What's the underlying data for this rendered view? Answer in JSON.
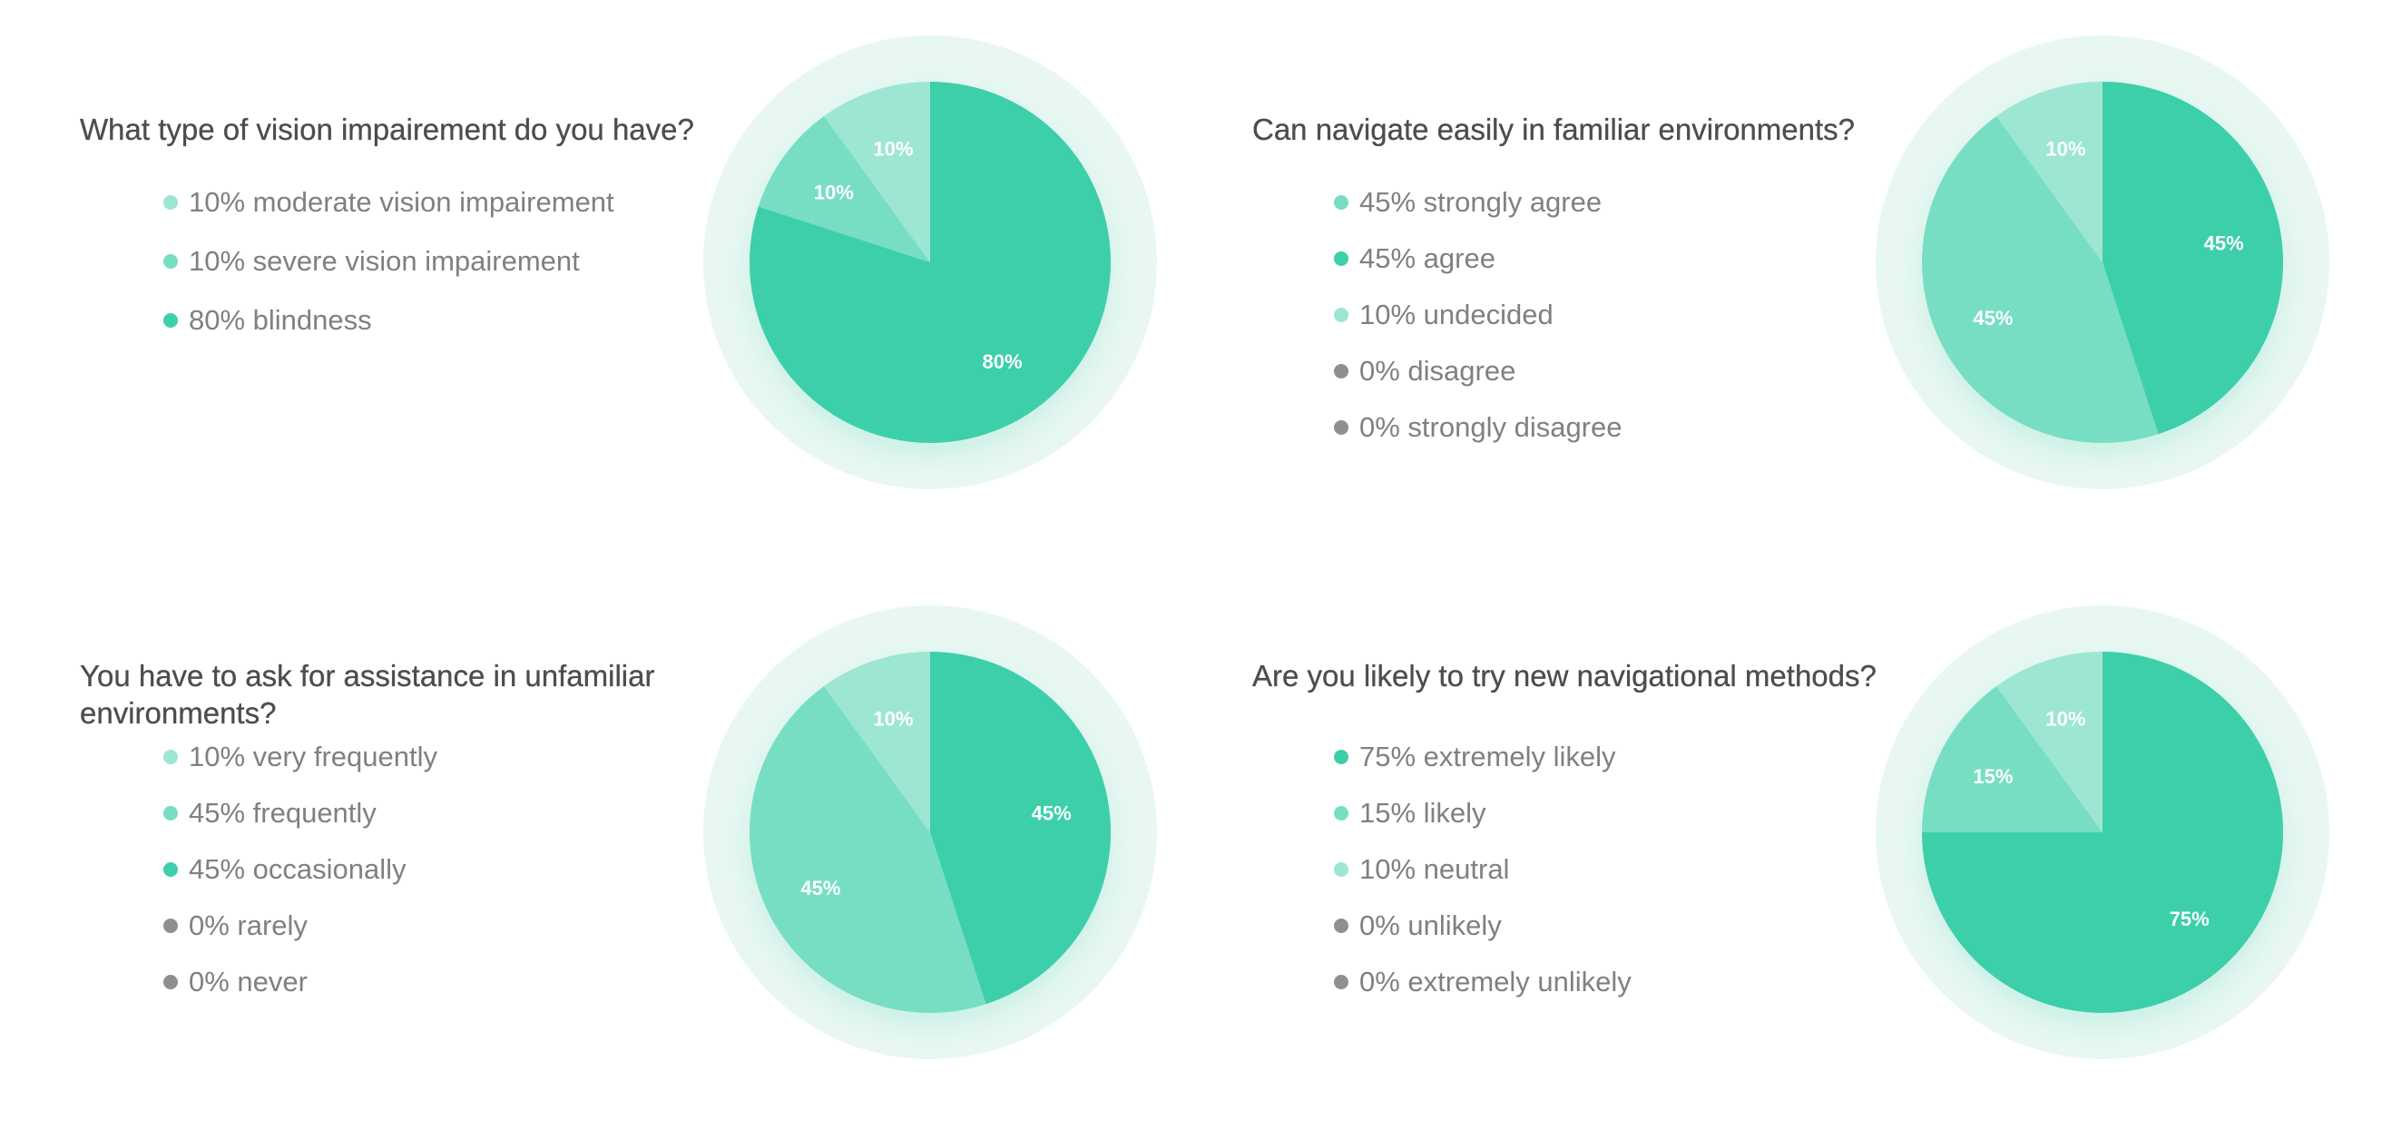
{
  "colors": {
    "dark_green": "#3ccfaa",
    "mid_green": "#77dec4",
    "light_green": "#9de6d3",
    "gray": "#8f8f8f",
    "halo": "#e8f7f2"
  },
  "panels": [
    {
      "question": "What type of vision impairement do you have?",
      "legend": [
        {
          "text": "10% moderate vision impairement",
          "color": "#9de6d3"
        },
        {
          "text": "10% severe vision impairement",
          "color": "#77dec4"
        },
        {
          "text": "80% blindness",
          "color": "#3ccfaa"
        }
      ]
    },
    {
      "question": "Can navigate easily in familiar environments?",
      "legend": [
        {
          "text": "45% strongly agree",
          "color": "#77dec4"
        },
        {
          "text": "45% agree",
          "color": "#3ccfaa"
        },
        {
          "text": "10% undecided",
          "color": "#9de6d3"
        },
        {
          "text": "0% disagree",
          "color": "#8f8f8f"
        },
        {
          "text": "0% strongly disagree",
          "color": "#8f8f8f"
        }
      ]
    },
    {
      "question": "You have to ask for assistance in unfamiliar environments?",
      "legend": [
        {
          "text": "10% very frequently",
          "color": "#9de6d3"
        },
        {
          "text": "45% frequently",
          "color": "#77dec4"
        },
        {
          "text": "45% occasionally",
          "color": "#3ccfaa"
        },
        {
          "text": "0% rarely",
          "color": "#8f8f8f"
        },
        {
          "text": "0% never",
          "color": "#8f8f8f"
        }
      ]
    },
    {
      "question": "Are you likely to try new navigational methods?",
      "legend": [
        {
          "text": "75% extremely likely",
          "color": "#3ccfaa"
        },
        {
          "text": "15% likely",
          "color": "#77dec4"
        },
        {
          "text": "10% neutral",
          "color": "#9de6d3"
        },
        {
          "text": "0% unlikely",
          "color": "#8f8f8f"
        },
        {
          "text": "0% extremely unlikely",
          "color": "#8f8f8f"
        }
      ]
    }
  ],
  "chart_data": [
    {
      "type": "pie",
      "title": "What type of vision impairement do you have?",
      "slices": [
        {
          "name": "blindness",
          "value": 80,
          "label": "80%",
          "color": "#3ccfaa"
        },
        {
          "name": "severe vision impairement",
          "value": 10,
          "label": "10%",
          "color": "#77dec4"
        },
        {
          "name": "moderate vision impairement",
          "value": 10,
          "label": "10%",
          "color": "#9de6d3"
        }
      ]
    },
    {
      "type": "pie",
      "title": "Can navigate easily in familiar environments?",
      "slices": [
        {
          "name": "agree",
          "value": 45,
          "label": "45%",
          "color": "#3ccfaa"
        },
        {
          "name": "strongly agree",
          "value": 45,
          "label": "45%",
          "color": "#77dec4"
        },
        {
          "name": "undecided",
          "value": 10,
          "label": "10%",
          "color": "#9de6d3"
        },
        {
          "name": "disagree",
          "value": 0,
          "label": "",
          "color": "#8f8f8f"
        },
        {
          "name": "strongly disagree",
          "value": 0,
          "label": "",
          "color": "#8f8f8f"
        }
      ]
    },
    {
      "type": "pie",
      "title": "You have to ask for assistance in unfamiliar environments?",
      "slices": [
        {
          "name": "occasionally",
          "value": 45,
          "label": "45%",
          "color": "#3ccfaa"
        },
        {
          "name": "frequently",
          "value": 45,
          "label": "45%",
          "color": "#77dec4"
        },
        {
          "name": "very frequently",
          "value": 10,
          "label": "10%",
          "color": "#9de6d3"
        },
        {
          "name": "rarely",
          "value": 0,
          "label": "",
          "color": "#8f8f8f"
        },
        {
          "name": "never",
          "value": 0,
          "label": "",
          "color": "#8f8f8f"
        }
      ]
    },
    {
      "type": "pie",
      "title": "Are you likely to try new navigational methods?",
      "slices": [
        {
          "name": "extremely likely",
          "value": 75,
          "label": "75%",
          "color": "#3ccfaa"
        },
        {
          "name": "likely",
          "value": 15,
          "label": "15%",
          "color": "#77dec4"
        },
        {
          "name": "neutral",
          "value": 10,
          "label": "10%",
          "color": "#9de6d3"
        },
        {
          "name": "unlikely",
          "value": 0,
          "label": "",
          "color": "#8f8f8f"
        },
        {
          "name": "extremely unlikely",
          "value": 0,
          "label": "",
          "color": "#8f8f8f"
        }
      ]
    }
  ]
}
